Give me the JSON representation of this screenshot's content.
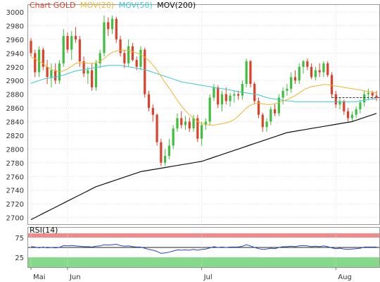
{
  "chart_data": [
    {
      "type": "candlestick",
      "legend": [
        {
          "label": "Chart GOLD",
          "color": "#e0402a"
        },
        {
          "label": "MOV(20)",
          "color": "#f0b429"
        },
        {
          "label": "MOV(50)",
          "color": "#38c9d6"
        },
        {
          "label": "MOV(200)",
          "color": "#111111"
        }
      ],
      "ylim": [
        2680,
        3000
      ],
      "yticks": [
        3000,
        2980,
        2960,
        2940,
        2920,
        2900,
        2880,
        2860,
        2840,
        2820,
        2800,
        2780,
        2760,
        2740,
        2720,
        2700
      ],
      "x_labels": [
        "Mai",
        "Jun",
        "Jul",
        "Aug"
      ],
      "x_label_index": [
        0,
        9,
        42,
        75
      ],
      "colors": {
        "up": "#3fbf3f",
        "down": "#e0402a",
        "last_price_line": "#333333"
      },
      "last_price": 2875,
      "candles": [
        [
          2958,
          2962,
          2935,
          2940
        ],
        [
          2940,
          2945,
          2905,
          2912
        ],
        [
          2912,
          2950,
          2905,
          2945
        ],
        [
          2945,
          2948,
          2915,
          2920
        ],
        [
          2920,
          2930,
          2895,
          2905
        ],
        [
          2905,
          2925,
          2890,
          2915
        ],
        [
          2915,
          2925,
          2895,
          2900
        ],
        [
          2900,
          2930,
          2895,
          2925
        ],
        [
          2925,
          2975,
          2920,
          2965
        ],
        [
          2965,
          2970,
          2940,
          2945
        ],
        [
          2945,
          2972,
          2930,
          2965
        ],
        [
          2965,
          2978,
          2955,
          2960
        ],
        [
          2960,
          2965,
          2920,
          2928
        ],
        [
          2928,
          2935,
          2905,
          2910
        ],
        [
          2910,
          2920,
          2895,
          2915
        ],
        [
          2915,
          2925,
          2885,
          2890
        ],
        [
          2890,
          2930,
          2885,
          2925
        ],
        [
          2925,
          2945,
          2918,
          2940
        ],
        [
          2940,
          2995,
          2935,
          2985
        ],
        [
          2985,
          2992,
          2965,
          2975
        ],
        [
          2975,
          2995,
          2968,
          2990
        ],
        [
          2990,
          2993,
          2955,
          2960
        ],
        [
          2960,
          2965,
          2935,
          2940
        ],
        [
          2940,
          2945,
          2918,
          2925
        ],
        [
          2925,
          2960,
          2920,
          2950
        ],
        [
          2950,
          2955,
          2928,
          2930
        ],
        [
          2930,
          2935,
          2915,
          2920
        ],
        [
          2920,
          2950,
          2915,
          2945
        ],
        [
          2945,
          2948,
          2875,
          2880
        ],
        [
          2880,
          2885,
          2855,
          2860
        ],
        [
          2860,
          2865,
          2840,
          2850
        ],
        [
          2850,
          2852,
          2805,
          2810
        ],
        [
          2810,
          2815,
          2775,
          2780
        ],
        [
          2780,
          2800,
          2775,
          2790
        ],
        [
          2790,
          2815,
          2785,
          2805
        ],
        [
          2805,
          2835,
          2800,
          2830
        ],
        [
          2830,
          2852,
          2825,
          2845
        ],
        [
          2845,
          2855,
          2830,
          2835
        ],
        [
          2835,
          2848,
          2828,
          2840
        ],
        [
          2840,
          2846,
          2825,
          2830
        ],
        [
          2830,
          2850,
          2825,
          2845
        ],
        [
          2845,
          2850,
          2810,
          2815
        ],
        [
          2815,
          2840,
          2805,
          2835
        ],
        [
          2835,
          2845,
          2828,
          2840
        ],
        [
          2840,
          2880,
          2835,
          2875
        ],
        [
          2875,
          2895,
          2870,
          2890
        ],
        [
          2890,
          2893,
          2860,
          2865
        ],
        [
          2865,
          2885,
          2855,
          2880
        ],
        [
          2880,
          2890,
          2865,
          2870
        ],
        [
          2870,
          2882,
          2862,
          2878
        ],
        [
          2878,
          2885,
          2868,
          2880
        ],
        [
          2880,
          2885,
          2872,
          2878
        ],
        [
          2878,
          2900,
          2872,
          2895
        ],
        [
          2895,
          2932,
          2890,
          2928
        ],
        [
          2928,
          2930,
          2890,
          2895
        ],
        [
          2895,
          2898,
          2865,
          2870
        ],
        [
          2870,
          2875,
          2845,
          2850
        ],
        [
          2850,
          2853,
          2825,
          2832
        ],
        [
          2832,
          2845,
          2825,
          2840
        ],
        [
          2840,
          2862,
          2835,
          2858
        ],
        [
          2858,
          2866,
          2848,
          2852
        ],
        [
          2852,
          2880,
          2848,
          2875
        ],
        [
          2875,
          2890,
          2865,
          2885
        ],
        [
          2885,
          2895,
          2878,
          2888
        ],
        [
          2888,
          2912,
          2882,
          2905
        ],
        [
          2905,
          2915,
          2895,
          2900
        ],
        [
          2900,
          2925,
          2895,
          2920
        ],
        [
          2920,
          2930,
          2910,
          2928
        ],
        [
          2928,
          2932,
          2915,
          2920
        ],
        [
          2920,
          2925,
          2902,
          2905
        ],
        [
          2905,
          2920,
          2900,
          2915
        ],
        [
          2915,
          2925,
          2905,
          2912
        ],
        [
          2912,
          2928,
          2905,
          2925
        ],
        [
          2925,
          2928,
          2905,
          2908
        ],
        [
          2908,
          2912,
          2875,
          2880
        ],
        [
          2880,
          2885,
          2860,
          2865
        ],
        [
          2865,
          2875,
          2858,
          2870
        ],
        [
          2870,
          2872,
          2850,
          2855
        ],
        [
          2855,
          2860,
          2840,
          2845
        ],
        [
          2845,
          2855,
          2840,
          2850
        ],
        [
          2850,
          2862,
          2845,
          2858
        ],
        [
          2858,
          2872,
          2852,
          2868
        ],
        [
          2868,
          2885,
          2862,
          2880
        ],
        [
          2880,
          2888,
          2872,
          2882
        ],
        [
          2882,
          2885,
          2872,
          2878
        ],
        [
          2878,
          2885,
          2870,
          2875
        ]
      ],
      "mov20": [
        2934,
        2932,
        2928,
        2925,
        2920,
        2916,
        2914,
        2913,
        2914,
        2917,
        2921,
        2925,
        2926,
        2926,
        2925,
        2925,
        2926,
        2928,
        2932,
        2937,
        2941,
        2943,
        2944,
        2944,
        2944,
        2942,
        2940,
        2938,
        2934,
        2929,
        2923,
        2915,
        2906,
        2897,
        2889,
        2880,
        2871,
        2863,
        2856,
        2850,
        2845,
        2840,
        2837,
        2836,
        2835,
        2835,
        2836,
        2837,
        2838,
        2840,
        2843,
        2848,
        2854,
        2860,
        2864,
        2866,
        2867,
        2866,
        2865,
        2865,
        2866,
        2868,
        2870,
        2872,
        2875,
        2878,
        2882,
        2886,
        2889,
        2891,
        2892,
        2893,
        2894,
        2894,
        2893,
        2892,
        2891,
        2890,
        2889,
        2888,
        2887,
        2886,
        2885,
        2884,
        2883,
        2882
      ],
      "mov50": [
        2896,
        2898,
        2900,
        2902,
        2903,
        2904,
        2905,
        2906,
        2908,
        2910,
        2912,
        2914,
        2915,
        2916,
        2917,
        2918,
        2919,
        2920,
        2921,
        2922,
        2922,
        2922,
        2922,
        2921,
        2920,
        2919,
        2918,
        2917,
        2916,
        2914,
        2912,
        2910,
        2908,
        2906,
        2904,
        2902,
        2900,
        2898,
        2897,
        2896,
        2895,
        2894,
        2893,
        2892,
        2891,
        2890,
        2889,
        2888,
        2887,
        2886,
        2885,
        2884,
        2883,
        2882,
        2881,
        2880,
        2879,
        2877,
        2875,
        2874,
        2873,
        2872,
        2871,
        2870,
        2870,
        2869,
        2869,
        2869,
        2869,
        2869,
        2869,
        2869,
        2869,
        2869,
        2869,
        2869,
        2869,
        2869,
        2869,
        2869,
        2869,
        2870,
        2871,
        2872,
        2873,
        2873
      ],
      "mov200": [
        2697,
        2700,
        2703,
        2706,
        2709,
        2712,
        2715,
        2718,
        2721,
        2724,
        2727,
        2730,
        2733,
        2736,
        2739,
        2742,
        2745,
        2747,
        2749,
        2751,
        2753,
        2755,
        2757,
        2759,
        2761,
        2763,
        2765,
        2767,
        2768,
        2769,
        2770,
        2771,
        2772,
        2773,
        2774,
        2775,
        2776,
        2777,
        2778,
        2779,
        2780,
        2781,
        2782,
        2784,
        2786,
        2788,
        2790,
        2792,
        2794,
        2796,
        2798,
        2800,
        2802,
        2804,
        2806,
        2808,
        2810,
        2812,
        2814,
        2816,
        2818,
        2820,
        2822,
        2824,
        2825,
        2826,
        2827,
        2828,
        2829,
        2830,
        2831,
        2832,
        2833,
        2834,
        2835,
        2836,
        2837,
        2838,
        2839,
        2840,
        2842,
        2844,
        2846,
        2848,
        2850,
        2852
      ]
    },
    {
      "type": "line",
      "title": "RSI(14)",
      "ylim": [
        0,
        100
      ],
      "yticks": [
        75,
        25
      ],
      "bands": {
        "overbought_from": 75,
        "oversold_to": 25,
        "overbought_color": "#f4898a",
        "oversold_color": "#86d98a",
        "line_color": "#2743c8"
      },
      "values": [
        52,
        51,
        49,
        51,
        49,
        50,
        49,
        50,
        55,
        54,
        55,
        54,
        53,
        52,
        52,
        51,
        53,
        54,
        57,
        56,
        57,
        58,
        55,
        53,
        54,
        52,
        51,
        51,
        48,
        45,
        43,
        40,
        35,
        36,
        38,
        41,
        44,
        43,
        44,
        43,
        45,
        43,
        45,
        46,
        49,
        52,
        50,
        51,
        50,
        51,
        51,
        51,
        53,
        57,
        54,
        50,
        47,
        45,
        46,
        48,
        47,
        50,
        52,
        52,
        53,
        52,
        54,
        55,
        54,
        52,
        53,
        52,
        54,
        52,
        49,
        47,
        48,
        46,
        45,
        46,
        47,
        48,
        51,
        51,
        51,
        51
      ]
    }
  ]
}
